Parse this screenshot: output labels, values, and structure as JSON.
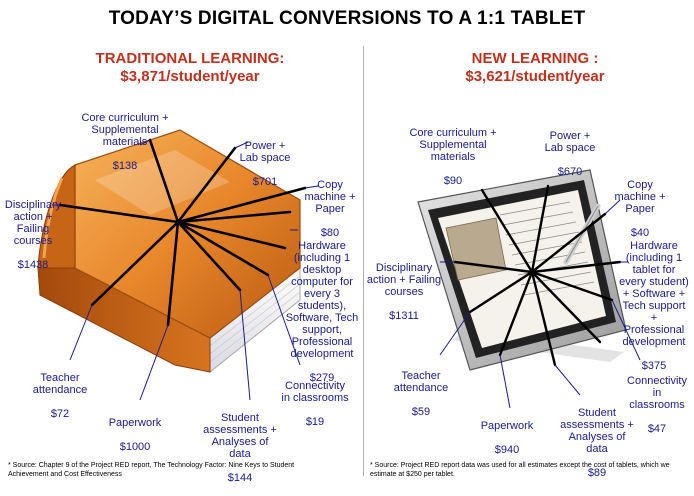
{
  "title": "TODAY’S DIGITAL CONVERSIONS TO A 1:1 TABLET",
  "colors": {
    "heading": "#c0311f",
    "label": "#1a1a8c",
    "book": "#e8862a",
    "line": "#000000"
  },
  "traditional": {
    "heading_line1": "TRADITIONAL LEARNING:",
    "heading_line2": "$3,871/student/year",
    "icon": "book-icon",
    "items": [
      {
        "label": "Core curriculum +\nSupplemental\nmaterials",
        "value": "$138"
      },
      {
        "label": "Power +\nLab space",
        "value": "$701"
      },
      {
        "label": "Copy\nmachine +\nPaper",
        "value": "$80"
      },
      {
        "label": "Disciplinary\naction +\nFailing\ncourses",
        "value": "$1438"
      },
      {
        "label": "Hardware\n(including 1\ndesktop\ncomputer for\nevery 3\nstudents),\nSoftware, Tech\nsupport,\nProfessional\ndevelopment",
        "value": "$279"
      },
      {
        "label": "Teacher\nattendance",
        "value": "$72"
      },
      {
        "label": "Connectivity\nin classrooms",
        "value": "$19"
      },
      {
        "label": "Paperwork",
        "value": "$1000"
      },
      {
        "label": "Student\nassessments +\nAnalyses of\ndata",
        "value": "$144"
      }
    ],
    "footnote": "* Source: Chapter 9 of the Project RED report, The Technology Factor: Nine Keys to Student\nAchievement and Cost Effectiveness"
  },
  "new": {
    "heading_line1": "NEW LEARNING :",
    "heading_line2": "$3,621/student/year",
    "icon": "tablet-icon",
    "items": [
      {
        "label": "Core curriculum +\nSupplemental\nmaterials",
        "value": "$90"
      },
      {
        "label": "Power +\nLab space",
        "value": "$670"
      },
      {
        "label": "Copy\nmachine +\nPaper",
        "value": "$40"
      },
      {
        "label": "Disciplinary\naction + Failing\ncourses",
        "value": "$1311"
      },
      {
        "label": "Hardware\n(including 1\ntablet for\nevery student)\n+ Software +\nTech support\n+\nProfessional\ndevelopment",
        "value": "$375"
      },
      {
        "label": "Teacher\nattendance",
        "value": "$59"
      },
      {
        "label": "Connectivity\nin\nclassrooms",
        "value": "$47"
      },
      {
        "label": "Paperwork",
        "value": "$940"
      },
      {
        "label": "Student\nassessments +\nAnalyses of\ndata",
        "value": "$89"
      }
    ],
    "footnote": "* Source: Project RED report data was used for all estimates except the cost of tablets, which we\nestimate at $250 per tablet."
  }
}
